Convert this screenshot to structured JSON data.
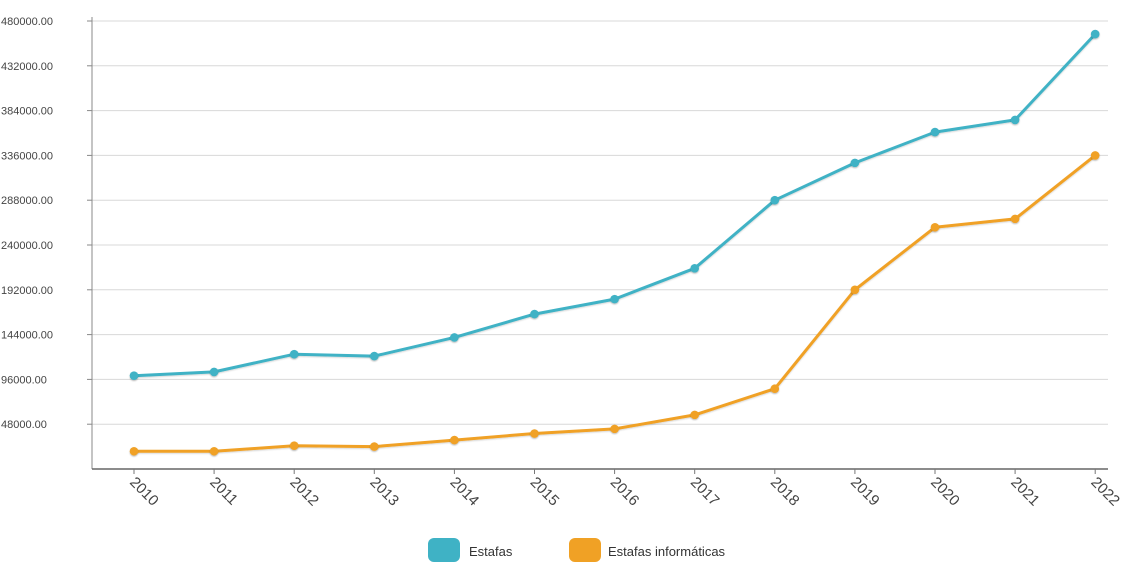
{
  "chart_data": {
    "type": "line",
    "title": "",
    "xlabel": "",
    "ylabel": "",
    "categories": [
      "2010",
      "2011",
      "2012",
      "2013",
      "2014",
      "2015",
      "2016",
      "2017",
      "2018",
      "2019",
      "2020",
      "2021",
      "2022"
    ],
    "series": [
      {
        "name": "Estafas",
        "color": "#3fb2c5",
        "values": [
          100000,
          104000,
          123000,
          121000,
          141000,
          166000,
          182000,
          215000,
          288000,
          328000,
          361000,
          374000,
          466000
        ]
      },
      {
        "name": "Estafas informáticas",
        "color": "#f0a125",
        "values": [
          19000,
          19000,
          25000,
          24000,
          31000,
          38000,
          43000,
          58000,
          86000,
          192000,
          259000,
          268000,
          336000
        ]
      }
    ],
    "ylim": [
      0,
      480000
    ],
    "yticks": [
      "480000.00",
      "432000.00",
      "384000.00",
      "336000.00",
      "288000.00",
      "240000.00",
      "192000.00",
      "144000.00",
      "96000.00",
      "48000.00"
    ],
    "grid": true,
    "legend": "bottom-center"
  }
}
